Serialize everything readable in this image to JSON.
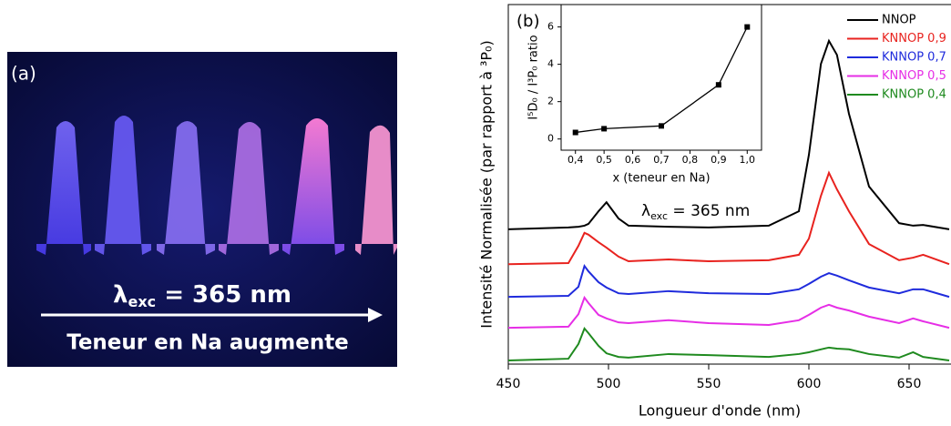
{
  "photo": {
    "panel_label": "(a)",
    "lambda_label": {
      "symbol": "λ",
      "subscript": "exc",
      "text": " = 365 nm"
    },
    "caption": "Teneur en Na augmente"
  },
  "chart_data": [
    {
      "type": "line",
      "panel_label": "(b)",
      "annotation": {
        "symbol": "λ",
        "subscript": "exc",
        "text": " = 365 nm"
      },
      "x_label": "Longueur d'onde (nm)",
      "y_label": "Intensité Normalisée (par rapport à ³P₀)",
      "x": [
        450,
        480,
        485,
        488,
        490,
        495,
        499,
        505,
        510,
        530,
        550,
        580,
        595,
        600,
        606,
        610,
        614,
        620,
        630,
        645,
        652,
        657,
        670
      ],
      "series": [
        {
          "name": "NNOP",
          "color": "#000000",
          "values": [
            37.5,
            38,
            38.2,
            38.5,
            39,
            42.5,
            45,
            40.5,
            38.5,
            38.2,
            38,
            38.5,
            42.5,
            58.2,
            83.5,
            89.9,
            86,
            69.6,
            49.4,
            39.2,
            38.5,
            38.7,
            37.5
          ]
        },
        {
          "name": "KNNOP 0,9",
          "color": "#e8231f",
          "values": [
            27.8,
            28.1,
            32.9,
            36.5,
            36,
            33.9,
            32.4,
            29.9,
            28.6,
            29.1,
            28.6,
            28.9,
            30.4,
            34.9,
            46.8,
            53.2,
            48.6,
            42.5,
            33.4,
            28.9,
            29.6,
            30.4,
            27.8
          ]
        },
        {
          "name": "KNNOP 0,7",
          "color": "#1f2bdc",
          "values": [
            18.7,
            19,
            21.5,
            27.3,
            25.8,
            22.8,
            21.3,
            19.7,
            19.5,
            20.3,
            19.7,
            19.5,
            20.8,
            22.3,
            24.3,
            25.3,
            24.6,
            23.3,
            21.3,
            19.7,
            20.8,
            20.8,
            18.7
          ]
        },
        {
          "name": "KNNOP 0,5",
          "color": "#e62ee6",
          "values": [
            10.1,
            10.4,
            13.9,
            18.5,
            17,
            13.7,
            12.7,
            11.6,
            11.4,
            12.2,
            11.4,
            10.9,
            12.2,
            13.7,
            15.7,
            16.5,
            15.7,
            14.9,
            13.2,
            11.4,
            12.7,
            11.9,
            10.1
          ]
        },
        {
          "name": "KNNOP 0,4",
          "color": "#1f8a1f",
          "values": [
            1,
            1.5,
            5.6,
            9.9,
            8.6,
            5.1,
            3,
            2,
            1.8,
            2.8,
            2.5,
            2,
            2.8,
            3.3,
            4.1,
            4.6,
            4.3,
            4.1,
            2.8,
            1.8,
            3.3,
            2,
            1
          ]
        }
      ],
      "xlim": [
        450,
        670
      ],
      "ylim": [
        0,
        100
      ],
      "xticks": [
        450,
        500,
        550,
        600,
        650
      ],
      "legend": "upper right"
    },
    {
      "type": "line",
      "markers": true,
      "x_label": "x (teneur en Na)",
      "y_label": "I⁵D₀ / I³P₀ ratio",
      "x": [
        0.4,
        0.5,
        0.7,
        0.9,
        1.0
      ],
      "values": [
        0.35,
        0.55,
        0.7,
        2.9,
        6.0
      ],
      "color": "#000000",
      "xlim": [
        0.35,
        1.05
      ],
      "ylim": [
        -0.6,
        7.2
      ],
      "xticks": [
        {
          "value": 0.4,
          "label": "0,4"
        },
        {
          "value": 0.5,
          "label": "0,5"
        },
        {
          "value": 0.6,
          "label": "0,6"
        },
        {
          "value": 0.7,
          "label": "0,7"
        },
        {
          "value": 0.8,
          "label": "0,8"
        },
        {
          "value": 0.9,
          "label": "0,9"
        },
        {
          "value": 1.0,
          "label": "1,0"
        }
      ],
      "yticks": [
        0,
        2,
        4,
        6
      ]
    }
  ]
}
